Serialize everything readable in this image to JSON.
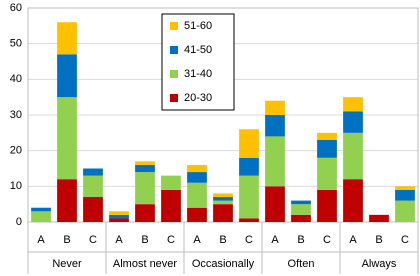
{
  "chart_data": {
    "type": "stacked_bar",
    "groups": [
      "Never",
      "Almost never",
      "Occasionally",
      "Often",
      "Always"
    ],
    "categories": [
      "A",
      "B",
      "C",
      "A",
      "B",
      "C",
      "A",
      "B",
      "C",
      "A",
      "B",
      "C",
      "A",
      "B",
      "C"
    ],
    "series": [
      {
        "name": "20-30",
        "color": "#c00000",
        "values": [
          0,
          12,
          7,
          1,
          5,
          9,
          4,
          5,
          1,
          10,
          2,
          9,
          12,
          2,
          0
        ]
      },
      {
        "name": "31-40",
        "color": "#92d050",
        "values": [
          3,
          23,
          6,
          0,
          9,
          4,
          7,
          1,
          12,
          14,
          3,
          9,
          13,
          0,
          6
        ]
      },
      {
        "name": "41-50",
        "color": "#0070c0",
        "values": [
          1,
          12,
          2,
          1,
          2,
          0,
          3,
          1,
          5,
          6,
          1,
          5,
          6,
          0,
          3
        ]
      },
      {
        "name": "51-60",
        "color": "#ffc000",
        "values": [
          0,
          9,
          0,
          1,
          1,
          0,
          2,
          1,
          8,
          4,
          0,
          2,
          4,
          0,
          1
        ]
      }
    ],
    "ylim": [
      0,
      60
    ],
    "yticks": [
      0,
      10,
      20,
      30,
      40,
      50,
      60
    ],
    "grid": true
  }
}
